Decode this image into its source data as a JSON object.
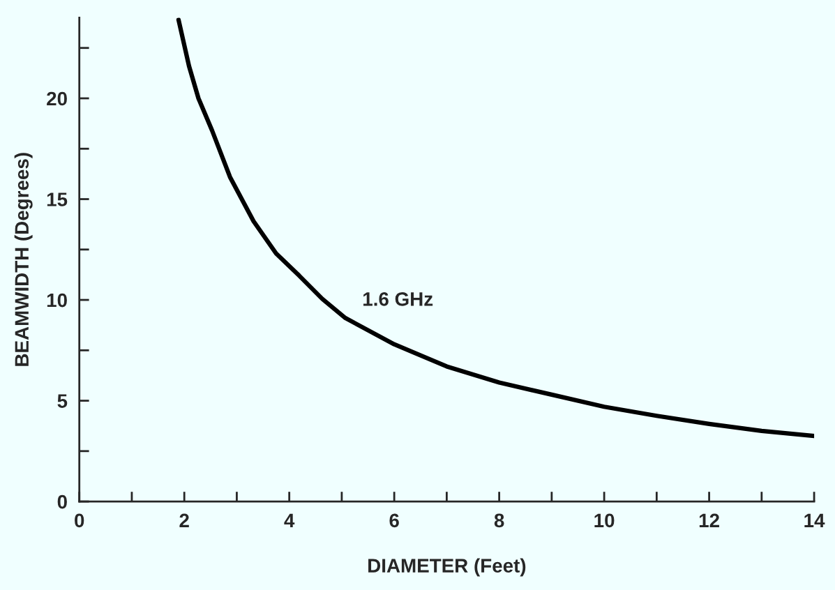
{
  "chart_data": {
    "type": "line",
    "xlabel": "DIAMETER (Feet)",
    "ylabel": "BEAMWIDTH (Degrees)",
    "x": [
      1.89,
      2.09,
      2.27,
      2.53,
      2.87,
      3.32,
      3.75,
      4.19,
      4.63,
      5.07,
      6.0,
      7.0,
      8.0,
      9.0,
      10.0,
      11.0,
      12.0,
      13.0,
      14.0
    ],
    "series": [
      {
        "color": "#000000",
        "values": [
          23.9,
          21.6,
          20.0,
          18.4,
          16.1,
          13.9,
          12.3,
          11.2,
          10.05,
          9.1,
          7.8,
          6.7,
          5.9,
          5.3,
          4.7,
          4.25,
          3.85,
          3.5,
          3.25
        ]
      }
    ],
    "annotations": [
      "1.6 GHz"
    ],
    "xlim": [
      0,
      14
    ],
    "ylim": [
      0,
      24
    ],
    "xticks": [
      0,
      {
        "value": 1,
        "label": null
      },
      2,
      {
        "value": 3,
        "label": null
      },
      4,
      {
        "value": 5,
        "label": null
      },
      6,
      {
        "value": 7,
        "label": null
      },
      8,
      {
        "value": 9,
        "label": null
      },
      10,
      {
        "value": 11,
        "label": null
      },
      12,
      {
        "value": 13,
        "label": null
      },
      14
    ],
    "yticks": [
      0,
      {
        "value": 2.5,
        "label": null
      },
      5,
      {
        "value": 7.5,
        "label": null
      },
      10,
      {
        "value": 12.5,
        "label": null
      },
      15,
      {
        "value": 17.5,
        "label": null
      },
      20,
      {
        "value": 22.5,
        "label": null
      }
    ],
    "grid": false,
    "legend": false,
    "marker": "none",
    "line_style": "solid"
  }
}
